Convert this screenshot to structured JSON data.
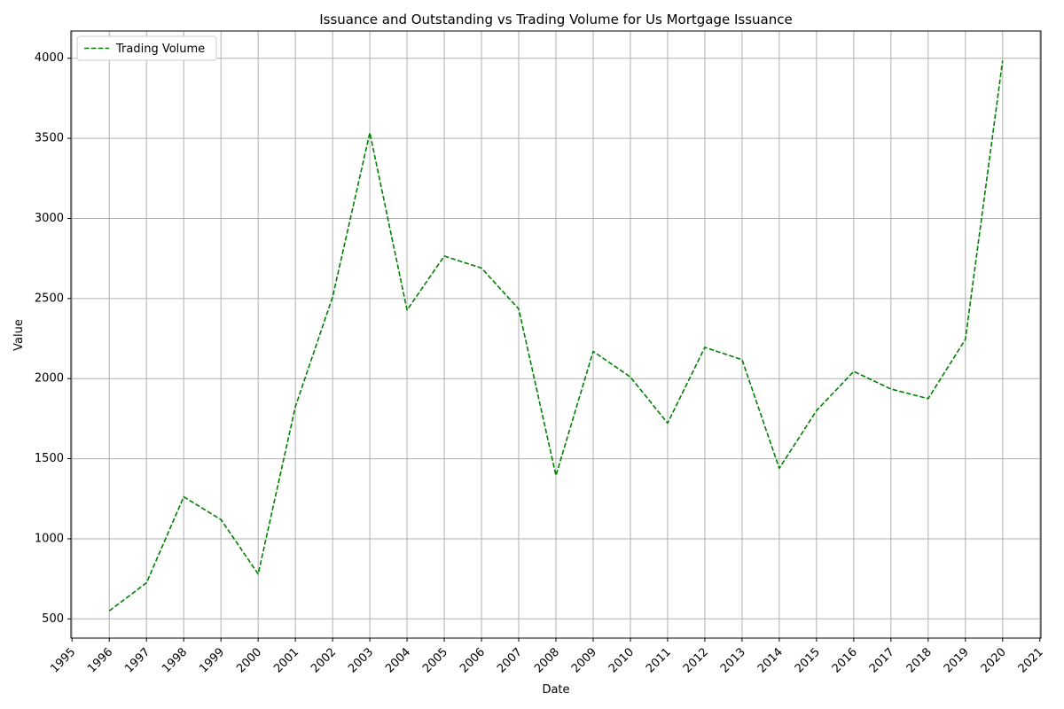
{
  "chart_data": {
    "type": "line",
    "title": "Issuance and Outstanding vs Trading Volume for Us Mortgage Issuance",
    "xlabel": "Date",
    "ylabel": "Value",
    "x": [
      "1996",
      "1997",
      "1998",
      "1999",
      "2000",
      "2001",
      "2002",
      "2003",
      "2004",
      "2005",
      "2006",
      "2007",
      "2008",
      "2009",
      "2010",
      "2011",
      "2012",
      "2013",
      "2014",
      "2015",
      "2016",
      "2017",
      "2018",
      "2019",
      "2020"
    ],
    "x_ticks": [
      "1995",
      "1996",
      "1997",
      "1998",
      "1999",
      "2000",
      "2001",
      "2002",
      "2003",
      "2004",
      "2005",
      "2006",
      "2007",
      "2008",
      "2009",
      "2010",
      "2011",
      "2012",
      "2013",
      "2014",
      "2015",
      "2016",
      "2017",
      "2018",
      "2019",
      "2020",
      "2021"
    ],
    "xlim": [
      1994.97,
      2021.03
    ],
    "y_ticks": [
      500,
      1000,
      1500,
      2000,
      2500,
      3000,
      3500,
      4000
    ],
    "ylim": [
      380,
      4170
    ],
    "grid": true,
    "legend_position": "upper-left",
    "series": [
      {
        "name": "Trading Volume",
        "color": "#008000",
        "line_style": "dashed",
        "values": [
          550,
          725,
          1262,
          1120,
          780,
          1825,
          2510,
          3535,
          2428,
          2765,
          2690,
          2435,
          1395,
          2170,
          2010,
          1722,
          2195,
          2118,
          1440,
          1800,
          2045,
          1935,
          1875,
          2245,
          3985
        ]
      }
    ]
  }
}
